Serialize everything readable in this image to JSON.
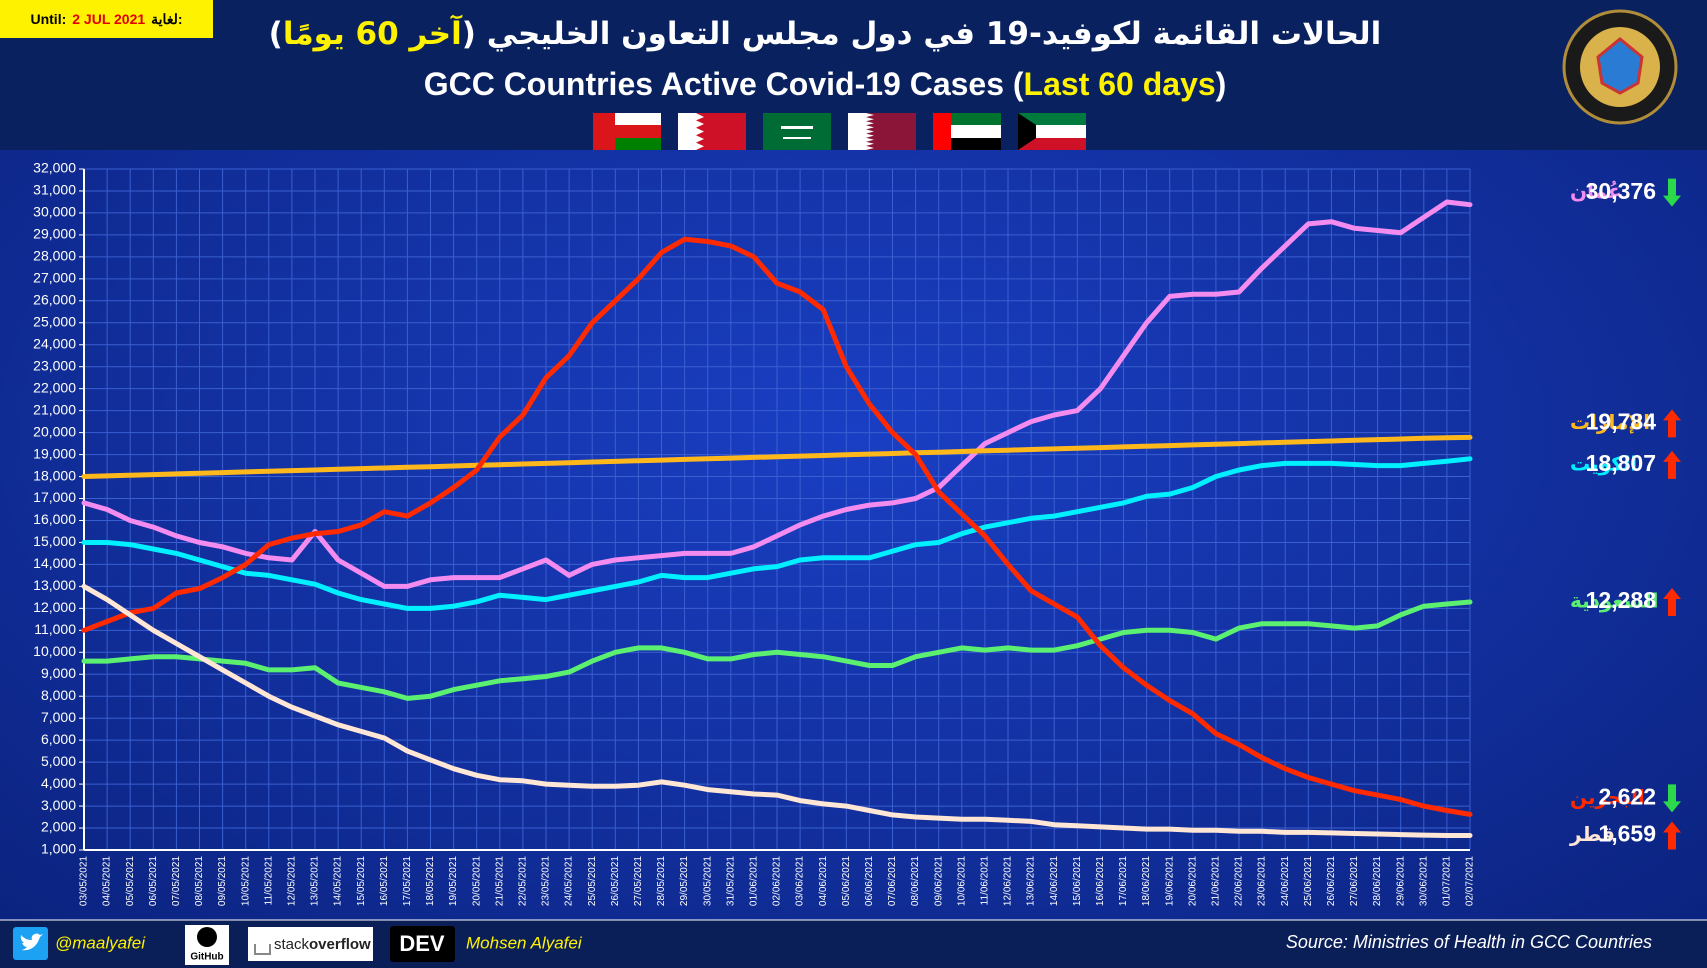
{
  "badge": {
    "label_en": "Until:",
    "date": "2 JUL 2021",
    "label_ar": "لغاية:"
  },
  "chart_data": {
    "type": "line",
    "title_ar": [
      "الحالات القائمة لكوفيد-19 في دول مجلس التعاون الخليجي (",
      "آخر 60 يومًا",
      ")"
    ],
    "title_en": [
      "GCC Countries Active Covid-19 Cases (",
      "Last 60 days",
      ")"
    ],
    "categories": [
      "03/05/2021",
      "04/05/2021",
      "05/05/2021",
      "06/05/2021",
      "07/05/2021",
      "08/05/2021",
      "09/05/2021",
      "10/05/2021",
      "11/05/2021",
      "12/05/2021",
      "13/05/2021",
      "14/05/2021",
      "15/05/2021",
      "16/05/2021",
      "17/05/2021",
      "18/05/2021",
      "19/05/2021",
      "20/05/2021",
      "21/05/2021",
      "22/05/2021",
      "23/05/2021",
      "24/05/2021",
      "25/05/2021",
      "26/05/2021",
      "27/05/2021",
      "28/05/2021",
      "29/05/2021",
      "30/05/2021",
      "31/05/2021",
      "01/06/2021",
      "02/06/2021",
      "03/06/2021",
      "04/06/2021",
      "05/06/2021",
      "06/06/2021",
      "07/06/2021",
      "08/06/2021",
      "09/06/2021",
      "10/06/2021",
      "11/06/2021",
      "12/06/2021",
      "13/06/2021",
      "14/06/2021",
      "15/06/2021",
      "16/06/2021",
      "17/06/2021",
      "18/06/2021",
      "19/06/2021",
      "20/06/2021",
      "21/06/2021",
      "22/06/2021",
      "23/06/2021",
      "24/06/2021",
      "25/06/2021",
      "26/06/2021",
      "27/06/2021",
      "28/06/2021",
      "29/06/2021",
      "30/06/2021",
      "01/07/2021",
      "02/07/2021"
    ],
    "ylim": [
      1000,
      32000
    ],
    "yticks": [
      {
        "value": 1000,
        "label": "1,000"
      },
      {
        "value": 2000,
        "label": "2,000"
      },
      {
        "value": 3000,
        "label": "3,000"
      },
      {
        "value": 4000,
        "label": "4,000"
      },
      {
        "value": 5000,
        "label": "5,000"
      },
      {
        "value": 6000,
        "label": "6,000"
      },
      {
        "value": 7000,
        "label": "7,000"
      },
      {
        "value": 8000,
        "label": "8,000"
      },
      {
        "value": 9000,
        "label": "9,000"
      },
      {
        "value": 10000,
        "label": "10,000"
      },
      {
        "value": 11000,
        "label": "11,000"
      },
      {
        "value": 12000,
        "label": "12,000"
      },
      {
        "value": 13000,
        "label": "13,000"
      },
      {
        "value": 14000,
        "label": "14,000"
      },
      {
        "value": 15000,
        "label": "15,000"
      },
      {
        "value": 16000,
        "label": "16,000"
      },
      {
        "value": 17000,
        "label": "17,000"
      },
      {
        "value": 18000,
        "label": "18,000"
      },
      {
        "value": 19000,
        "label": "19,000"
      },
      {
        "value": 20000,
        "label": "20,000"
      },
      {
        "value": 21000,
        "label": "21,000"
      },
      {
        "value": 22000,
        "label": "22,000"
      },
      {
        "value": 23000,
        "label": "23,000"
      },
      {
        "value": 24000,
        "label": "24,000"
      },
      {
        "value": 25000,
        "label": "25,000"
      },
      {
        "value": 26000,
        "label": "26,000"
      },
      {
        "value": 27000,
        "label": "27,000"
      },
      {
        "value": 28000,
        "label": "28,000"
      },
      {
        "value": 29000,
        "label": "29,000"
      },
      {
        "value": 30000,
        "label": "30,000"
      },
      {
        "value": 31000,
        "label": "31,000"
      },
      {
        "value": 32000,
        "label": "32,000"
      }
    ],
    "grid": true,
    "arrow_colors": {
      "up": "#ff2a00",
      "down": "#2bd94a"
    },
    "series": [
      {
        "name": "عُمان",
        "color": "#f48cf0",
        "trend": "down",
        "values": [
          16800,
          16500,
          16000,
          15700,
          15300,
          15000,
          14800,
          14500,
          14300,
          14200,
          15500,
          14200,
          13600,
          13000,
          13000,
          13300,
          13400,
          13400,
          13400,
          13800,
          14200,
          13500,
          14000,
          14200,
          14300,
          14400,
          14500,
          14500,
          14500,
          14800,
          15300,
          15800,
          16200,
          16500,
          16700,
          16800,
          17000,
          17500,
          18500,
          19500,
          20000,
          20500,
          20800,
          21000,
          22000,
          23500,
          25000,
          26200,
          26300,
          26300,
          26400,
          27500,
          28500,
          29500,
          29600,
          29300,
          29200,
          29100,
          29800,
          30500,
          30376
        ],
        "value_labels": [
          null,
          null,
          null,
          null,
          null,
          null,
          null,
          null,
          null,
          null,
          null,
          null,
          null,
          null,
          null,
          null,
          null,
          null,
          null,
          null,
          null,
          null,
          null,
          null,
          null,
          null,
          null,
          null,
          null,
          null,
          null,
          null,
          null,
          null,
          null,
          null,
          null,
          null,
          null,
          null,
          null,
          null,
          null,
          null,
          null,
          null,
          null,
          null,
          null,
          null,
          null,
          null,
          null,
          null,
          null,
          null,
          null,
          null,
          null,
          null,
          "30,376"
        ]
      },
      {
        "name": "الإمارات",
        "color": "#ffb81c",
        "trend": "up",
        "values": [
          18000,
          18030,
          18060,
          18090,
          18120,
          18150,
          18180,
          18210,
          18240,
          18270,
          18300,
          18330,
          18360,
          18390,
          18420,
          18450,
          18480,
          18510,
          18540,
          18570,
          18600,
          18630,
          18660,
          18690,
          18720,
          18750,
          18780,
          18810,
          18840,
          18870,
          18900,
          18930,
          18960,
          18990,
          19020,
          19050,
          19080,
          19110,
          19140,
          19170,
          19200,
          19230,
          19260,
          19290,
          19320,
          19350,
          19380,
          19410,
          19440,
          19470,
          19500,
          19530,
          19560,
          19590,
          19620,
          19650,
          19680,
          19710,
          19740,
          19770,
          19784
        ],
        "value_labels": [
          null,
          null,
          null,
          null,
          null,
          null,
          null,
          null,
          null,
          null,
          null,
          null,
          null,
          null,
          null,
          null,
          null,
          null,
          null,
          null,
          null,
          null,
          null,
          null,
          null,
          null,
          null,
          null,
          null,
          null,
          null,
          null,
          null,
          null,
          null,
          null,
          null,
          null,
          null,
          null,
          null,
          null,
          null,
          null,
          null,
          null,
          null,
          null,
          null,
          null,
          null,
          null,
          null,
          null,
          null,
          null,
          null,
          null,
          null,
          null,
          "19,784"
        ]
      },
      {
        "name": "الكويت",
        "color": "#00f0ff",
        "trend": "up",
        "values": [
          15000,
          15000,
          14900,
          14700,
          14500,
          14200,
          13900,
          13600,
          13500,
          13300,
          13100,
          12700,
          12400,
          12200,
          12000,
          12000,
          12100,
          12300,
          12600,
          12500,
          12400,
          12600,
          12800,
          13000,
          13200,
          13500,
          13400,
          13400,
          13600,
          13800,
          13900,
          14200,
          14300,
          14300,
          14300,
          14600,
          14900,
          15000,
          15400,
          15700,
          15900,
          16100,
          16200,
          16400,
          16600,
          16800,
          17100,
          17200,
          17500,
          18000,
          18300,
          18500,
          18600,
          18600,
          18600,
          18550,
          18500,
          18500,
          18600,
          18700,
          18807
        ],
        "value_labels": [
          null,
          null,
          null,
          null,
          null,
          null,
          null,
          null,
          null,
          null,
          null,
          null,
          null,
          null,
          null,
          null,
          null,
          null,
          null,
          null,
          null,
          null,
          null,
          null,
          null,
          null,
          null,
          null,
          null,
          null,
          null,
          null,
          null,
          null,
          null,
          null,
          null,
          null,
          null,
          null,
          null,
          null,
          null,
          null,
          null,
          null,
          null,
          null,
          null,
          null,
          null,
          null,
          null,
          null,
          null,
          null,
          null,
          null,
          null,
          null,
          "18,807"
        ]
      },
      {
        "name": "السعودية",
        "color": "#5cf070",
        "trend": "up",
        "values": [
          9600,
          9600,
          9700,
          9800,
          9800,
          9700,
          9600,
          9500,
          9200,
          9200,
          9300,
          8600,
          8400,
          8200,
          7900,
          8000,
          8300,
          8500,
          8700,
          8800,
          8900,
          9100,
          9600,
          10000,
          10200,
          10200,
          10000,
          9700,
          9700,
          9900,
          10000,
          9900,
          9800,
          9600,
          9400,
          9400,
          9800,
          10000,
          10200,
          10100,
          10200,
          10100,
          10100,
          10300,
          10600,
          10900,
          11000,
          11000,
          10900,
          10600,
          11100,
          11300,
          11300,
          11300,
          11200,
          11100,
          11200,
          11700,
          12100,
          12200,
          12288
        ],
        "value_labels": [
          null,
          null,
          null,
          null,
          null,
          null,
          null,
          null,
          null,
          null,
          null,
          null,
          null,
          null,
          null,
          null,
          null,
          null,
          null,
          null,
          null,
          null,
          null,
          null,
          null,
          null,
          null,
          null,
          null,
          null,
          null,
          null,
          null,
          null,
          null,
          null,
          null,
          null,
          null,
          null,
          null,
          null,
          null,
          null,
          null,
          null,
          null,
          null,
          null,
          null,
          null,
          null,
          null,
          null,
          null,
          null,
          null,
          null,
          null,
          null,
          "12,288"
        ]
      },
      {
        "name": "البحرين",
        "color": "#ff2a00",
        "trend": "down",
        "values": [
          11000,
          11400,
          11800,
          12000,
          12700,
          12900,
          13400,
          14000,
          14900,
          15200,
          15400,
          15500,
          15800,
          16400,
          16200,
          16800,
          17500,
          18300,
          19800,
          20800,
          22500,
          23500,
          25000,
          26000,
          27000,
          28200,
          28800,
          28700,
          28500,
          28000,
          26800,
          26400,
          25600,
          23000,
          21300,
          20000,
          19000,
          17300,
          16300,
          15300,
          14000,
          12800,
          12200,
          11600,
          10300,
          9300,
          8500,
          7800,
          7200,
          6300,
          5800,
          5200,
          4700,
          4300,
          4000,
          3700,
          3500,
          3300,
          3000,
          2800,
          2622
        ],
        "value_labels": [
          null,
          null,
          null,
          null,
          null,
          null,
          null,
          null,
          null,
          null,
          null,
          null,
          null,
          null,
          null,
          null,
          null,
          null,
          null,
          null,
          null,
          null,
          null,
          null,
          null,
          null,
          null,
          null,
          null,
          null,
          null,
          null,
          null,
          null,
          null,
          null,
          null,
          null,
          null,
          null,
          null,
          null,
          null,
          null,
          null,
          null,
          null,
          null,
          null,
          null,
          null,
          null,
          null,
          null,
          null,
          null,
          null,
          null,
          null,
          null,
          "2,622"
        ]
      },
      {
        "name": "قطر",
        "color": "#ffe6d5",
        "trend": "up",
        "values": [
          13000,
          12400,
          11700,
          11000,
          10400,
          9800,
          9200,
          8600,
          8000,
          7500,
          7100,
          6700,
          6400,
          6100,
          5500,
          5100,
          4700,
          4400,
          4200,
          4150,
          4000,
          3950,
          3900,
          3900,
          3950,
          4100,
          3950,
          3750,
          3650,
          3550,
          3500,
          3250,
          3100,
          3000,
          2800,
          2600,
          2500,
          2450,
          2400,
          2400,
          2350,
          2300,
          2150,
          2100,
          2050,
          2000,
          1950,
          1950,
          1900,
          1900,
          1850,
          1850,
          1800,
          1800,
          1780,
          1750,
          1730,
          1700,
          1680,
          1660,
          1659
        ],
        "value_labels": [
          null,
          null,
          null,
          null,
          null,
          null,
          null,
          null,
          null,
          null,
          null,
          null,
          null,
          null,
          null,
          null,
          null,
          null,
          null,
          null,
          null,
          null,
          null,
          null,
          null,
          null,
          null,
          null,
          null,
          null,
          null,
          null,
          null,
          null,
          null,
          null,
          null,
          null,
          null,
          null,
          null,
          null,
          null,
          null,
          null,
          null,
          null,
          null,
          null,
          null,
          null,
          null,
          null,
          null,
          null,
          null,
          null,
          null,
          null,
          null,
          "1,659"
        ]
      }
    ]
  },
  "footer": {
    "twitter": "@maalyafei",
    "github": "GitHub",
    "so_a": "stack",
    "so_b": "overflow",
    "dev": "DEV",
    "author": "Mohsen Alyafei",
    "source": "Source: Ministries of Health in GCC Countries"
  }
}
